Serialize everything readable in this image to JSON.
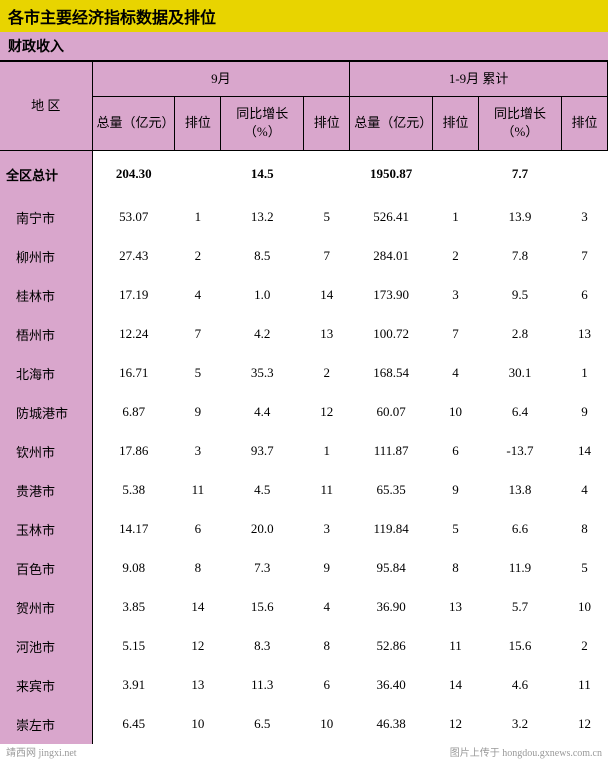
{
  "title": "各市主要经济指标数据及排位",
  "subtitle": "财政收入",
  "headers": {
    "region": "地 区",
    "month": "9月",
    "cumulative": "1-9月 累计",
    "total": "总量（亿元）",
    "rank": "排位",
    "growth": "同比增长（%）"
  },
  "total_row": {
    "region": "全区总计",
    "m_total": "204.30",
    "m_growth": "14.5",
    "c_total": "1950.87",
    "c_growth": "7.7"
  },
  "rows": [
    {
      "region": "南宁市",
      "m_total": "53.07",
      "m_rank": "1",
      "m_growth": "13.2",
      "m_grank": "5",
      "c_total": "526.41",
      "c_rank": "1",
      "c_growth": "13.9",
      "c_grank": "3"
    },
    {
      "region": "柳州市",
      "m_total": "27.43",
      "m_rank": "2",
      "m_growth": "8.5",
      "m_grank": "7",
      "c_total": "284.01",
      "c_rank": "2",
      "c_growth": "7.8",
      "c_grank": "7"
    },
    {
      "region": "桂林市",
      "m_total": "17.19",
      "m_rank": "4",
      "m_growth": "1.0",
      "m_grank": "14",
      "c_total": "173.90",
      "c_rank": "3",
      "c_growth": "9.5",
      "c_grank": "6"
    },
    {
      "region": "梧州市",
      "m_total": "12.24",
      "m_rank": "7",
      "m_growth": "4.2",
      "m_grank": "13",
      "c_total": "100.72",
      "c_rank": "7",
      "c_growth": "2.8",
      "c_grank": "13"
    },
    {
      "region": "北海市",
      "m_total": "16.71",
      "m_rank": "5",
      "m_growth": "35.3",
      "m_grank": "2",
      "c_total": "168.54",
      "c_rank": "4",
      "c_growth": "30.1",
      "c_grank": "1"
    },
    {
      "region": "防城港市",
      "m_total": "6.87",
      "m_rank": "9",
      "m_growth": "4.4",
      "m_grank": "12",
      "c_total": "60.07",
      "c_rank": "10",
      "c_growth": "6.4",
      "c_grank": "9"
    },
    {
      "region": "钦州市",
      "m_total": "17.86",
      "m_rank": "3",
      "m_growth": "93.7",
      "m_grank": "1",
      "c_total": "111.87",
      "c_rank": "6",
      "c_growth": "-13.7",
      "c_grank": "14"
    },
    {
      "region": "贵港市",
      "m_total": "5.38",
      "m_rank": "11",
      "m_growth": "4.5",
      "m_grank": "11",
      "c_total": "65.35",
      "c_rank": "9",
      "c_growth": "13.8",
      "c_grank": "4"
    },
    {
      "region": "玉林市",
      "m_total": "14.17",
      "m_rank": "6",
      "m_growth": "20.0",
      "m_grank": "3",
      "c_total": "119.84",
      "c_rank": "5",
      "c_growth": "6.6",
      "c_grank": "8"
    },
    {
      "region": "百色市",
      "m_total": "9.08",
      "m_rank": "8",
      "m_growth": "7.3",
      "m_grank": "9",
      "c_total": "95.84",
      "c_rank": "8",
      "c_growth": "11.9",
      "c_grank": "5"
    },
    {
      "region": "贺州市",
      "m_total": "3.85",
      "m_rank": "14",
      "m_growth": "15.6",
      "m_grank": "4",
      "c_total": "36.90",
      "c_rank": "13",
      "c_growth": "5.7",
      "c_grank": "10"
    },
    {
      "region": "河池市",
      "m_total": "5.15",
      "m_rank": "12",
      "m_growth": "8.3",
      "m_grank": "8",
      "c_total": "52.86",
      "c_rank": "11",
      "c_growth": "15.6",
      "c_grank": "2"
    },
    {
      "region": "来宾市",
      "m_total": "3.91",
      "m_rank": "13",
      "m_growth": "11.3",
      "m_grank": "6",
      "c_total": "36.40",
      "c_rank": "14",
      "c_growth": "4.6",
      "c_grank": "11"
    },
    {
      "region": "崇左市",
      "m_total": "6.45",
      "m_rank": "10",
      "m_growth": "6.5",
      "m_grank": "10",
      "c_total": "46.38",
      "c_rank": "12",
      "c_growth": "3.2",
      "c_grank": "12"
    }
  ],
  "watermark_left": "靖西网 jingxi.net",
  "watermark_right": "图片上传于 hongdou.gxnews.com.cn"
}
